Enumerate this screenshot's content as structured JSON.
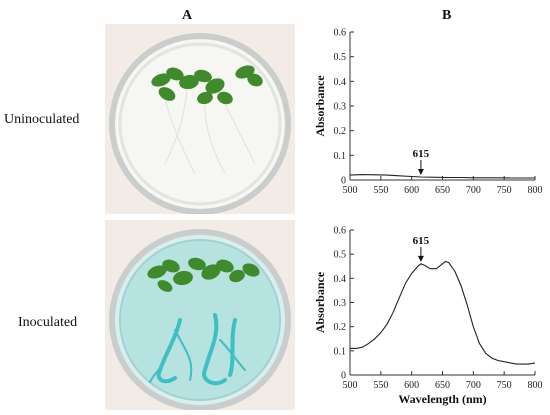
{
  "panels": {
    "a_label": "A",
    "b_label": "B"
  },
  "rows": {
    "top_label": "Uninoculated",
    "bottom_label": "Inoculated"
  },
  "colors": {
    "dish_rim": "#c9cdcb",
    "leaf": "#3f8a2a",
    "dye": "#3cc0c2",
    "medium_inoculated": "#b6e2e0",
    "line": "#222222"
  },
  "chart_data": [
    {
      "type": "line",
      "ylabel": "Absorbance",
      "xlabel": "",
      "xlim": [
        500,
        800
      ],
      "ylim": [
        0,
        0.6
      ],
      "xticks": [
        500,
        550,
        600,
        650,
        700,
        750,
        800
      ],
      "yticks": [
        0,
        0.1,
        0.2,
        0.3,
        0.4,
        0.5,
        0.6
      ],
      "grid": false,
      "annotation": {
        "text": "615",
        "x": 615,
        "arrow_tip_y": 0.012
      },
      "x": [
        500,
        520,
        540,
        560,
        580,
        600,
        615,
        640,
        660,
        680,
        700,
        720,
        740,
        760,
        780,
        800
      ],
      "y": [
        0.02,
        0.022,
        0.021,
        0.02,
        0.017,
        0.014,
        0.012,
        0.011,
        0.01,
        0.01,
        0.009,
        0.009,
        0.009,
        0.008,
        0.008,
        0.008
      ]
    },
    {
      "type": "line",
      "ylabel": "Absorbance",
      "xlabel": "Wavelength (nm)",
      "xlim": [
        500,
        800
      ],
      "ylim": [
        0,
        0.6
      ],
      "xticks": [
        500,
        550,
        600,
        650,
        700,
        750,
        800
      ],
      "yticks": [
        0,
        0.1,
        0.2,
        0.3,
        0.4,
        0.5,
        0.6
      ],
      "grid": false,
      "annotation": {
        "text": "615",
        "x": 615,
        "arrow_tip_y": 0.46
      },
      "x": [
        500,
        510,
        520,
        530,
        540,
        550,
        560,
        570,
        580,
        590,
        600,
        610,
        615,
        620,
        630,
        640,
        650,
        655,
        660,
        670,
        680,
        690,
        700,
        710,
        720,
        730,
        740,
        750,
        760,
        770,
        780,
        790,
        800
      ],
      "y": [
        0.11,
        0.11,
        0.115,
        0.13,
        0.15,
        0.175,
        0.21,
        0.26,
        0.32,
        0.38,
        0.42,
        0.45,
        0.46,
        0.455,
        0.44,
        0.44,
        0.46,
        0.47,
        0.465,
        0.43,
        0.37,
        0.29,
        0.2,
        0.13,
        0.09,
        0.07,
        0.06,
        0.055,
        0.05,
        0.045,
        0.045,
        0.045,
        0.05
      ]
    }
  ]
}
